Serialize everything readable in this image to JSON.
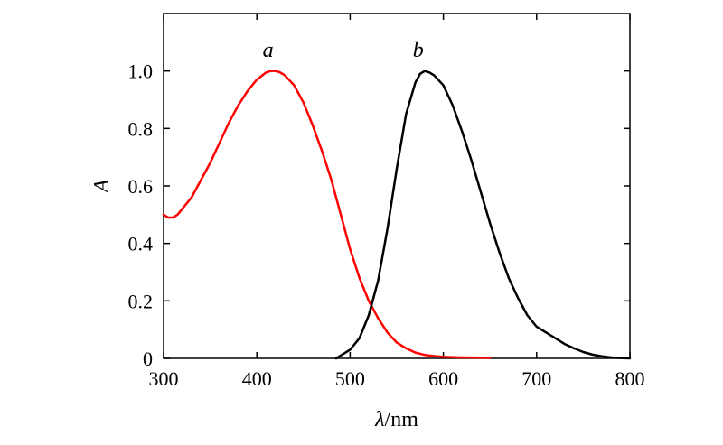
{
  "chart_data": {
    "type": "line",
    "xlabel": {
      "symbol": "λ",
      "unit": "/nm"
    },
    "ylabel": "A",
    "xlim": [
      300,
      800
    ],
    "ylim": [
      0,
      1.2
    ],
    "xticks": [
      "300",
      "400",
      "500",
      "600",
      "700",
      "800"
    ],
    "yticks": [
      "0",
      "0.2",
      "0.4",
      "0.6",
      "0.8",
      "1.0"
    ],
    "grid": false,
    "series": [
      {
        "name": "a",
        "color": "#ff0000",
        "label_position": [
          412,
          1.05
        ],
        "x": [
          300,
          305,
          310,
          315,
          320,
          330,
          340,
          350,
          360,
          370,
          380,
          390,
          400,
          410,
          415,
          420,
          425,
          430,
          440,
          450,
          460,
          470,
          480,
          490,
          500,
          510,
          520,
          530,
          540,
          550,
          560,
          570,
          580,
          590,
          600,
          620,
          650
        ],
        "y": [
          0.5,
          0.49,
          0.49,
          0.5,
          0.52,
          0.56,
          0.62,
          0.68,
          0.75,
          0.82,
          0.88,
          0.93,
          0.97,
          0.995,
          1.0,
          1.0,
          0.995,
          0.985,
          0.95,
          0.89,
          0.81,
          0.72,
          0.62,
          0.5,
          0.38,
          0.28,
          0.2,
          0.14,
          0.09,
          0.055,
          0.035,
          0.02,
          0.012,
          0.008,
          0.005,
          0.003,
          0.002
        ]
      },
      {
        "name": "b",
        "color": "#000000",
        "label_position": [
          573,
          1.05
        ],
        "x": [
          485,
          490,
          500,
          510,
          520,
          530,
          540,
          550,
          560,
          570,
          575,
          580,
          585,
          590,
          600,
          610,
          620,
          630,
          640,
          650,
          660,
          670,
          680,
          690,
          700,
          710,
          720,
          730,
          740,
          750,
          760,
          770,
          780,
          790,
          800
        ],
        "y": [
          0.0,
          0.01,
          0.03,
          0.07,
          0.15,
          0.27,
          0.45,
          0.66,
          0.85,
          0.96,
          0.99,
          1.0,
          0.995,
          0.985,
          0.95,
          0.88,
          0.79,
          0.69,
          0.58,
          0.47,
          0.37,
          0.28,
          0.21,
          0.15,
          0.11,
          0.09,
          0.07,
          0.05,
          0.035,
          0.022,
          0.013,
          0.007,
          0.003,
          0.001,
          0.0
        ]
      }
    ]
  }
}
